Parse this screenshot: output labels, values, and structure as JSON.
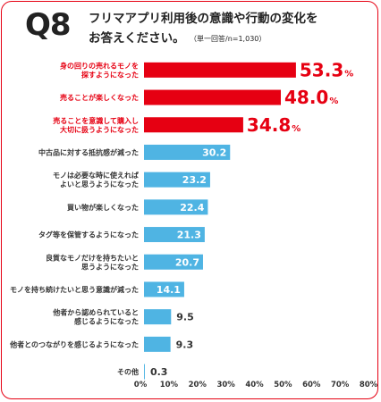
{
  "header": {
    "question": "Q8",
    "title_line1": "フリマアプリ利用後の意識や行動の変化を",
    "title_line2": "お答えください。",
    "note": "（単一回答/n=1,030）"
  },
  "colors": {
    "highlight": "#e60012",
    "normal": "#4fb4e3",
    "frame": "#e60012"
  },
  "chart_data": {
    "type": "bar",
    "orientation": "horizontal",
    "categories": [
      [
        "身の回りの売れるモノを",
        "探すようになった"
      ],
      [
        "売ることが楽しくなった"
      ],
      [
        "売ることを意識して購入し",
        "大切に扱うようになった"
      ],
      [
        "中古品に対する抵抗感が減った"
      ],
      [
        "モノは必要な時に使えれば",
        "よいと思うようになった"
      ],
      [
        "買い物が楽しくなった"
      ],
      [
        "タグ等を保管するようになった"
      ],
      [
        "良質なモノだけを持ちたいと",
        "思うようになった"
      ],
      [
        "モノを持ち続けたいと思う意識が減った"
      ],
      [
        "他者から認められていると",
        "感じるようになった"
      ],
      [
        "他者とのつながりを感じるようになった"
      ],
      [
        "その他"
      ]
    ],
    "values": [
      53.3,
      48.0,
      34.8,
      30.2,
      23.2,
      22.4,
      21.3,
      20.7,
      14.1,
      9.5,
      9.3,
      0.3
    ],
    "value_labels": [
      "53.3",
      "48.0",
      "34.8",
      "30.2",
      "23.2",
      "22.4",
      "21.3",
      "20.7",
      "14.1",
      "9.5",
      "9.3",
      "0.3"
    ],
    "highlighted": [
      true,
      true,
      true,
      false,
      false,
      false,
      false,
      false,
      false,
      false,
      false,
      false
    ],
    "percent_suffix": "%",
    "x_ticks": [
      "0%",
      "10%",
      "20%",
      "30%",
      "40%",
      "50%",
      "60%",
      "70%",
      "80%"
    ],
    "xlim": [
      0,
      80
    ],
    "grid": false
  }
}
